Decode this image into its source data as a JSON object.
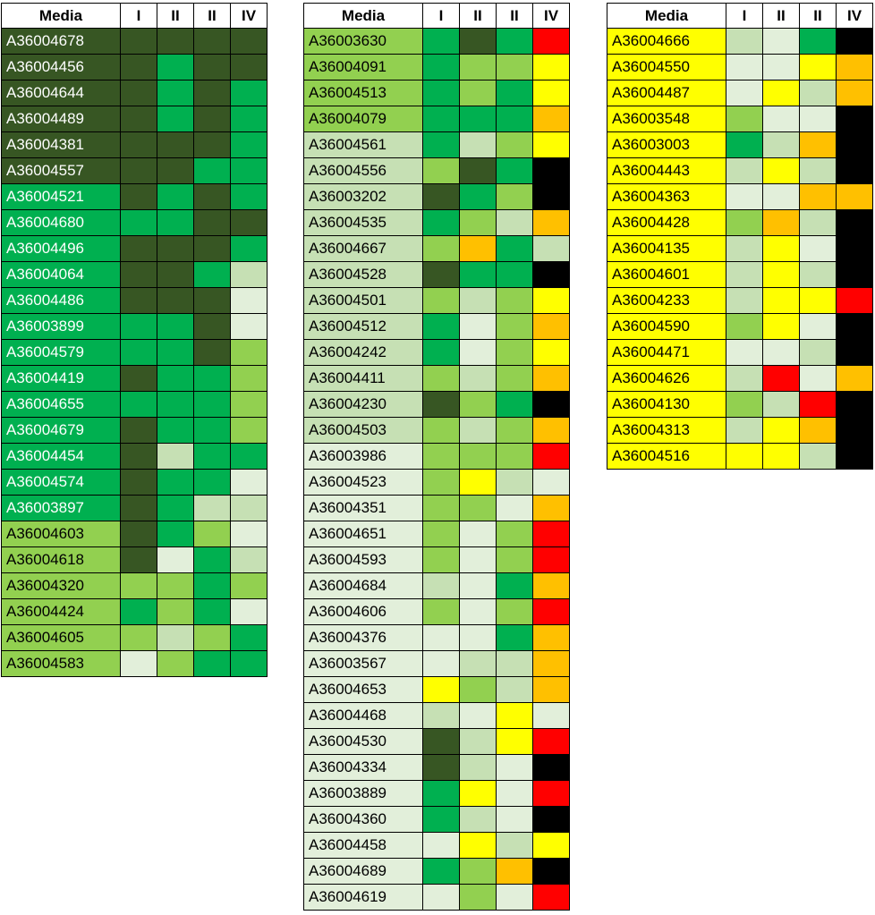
{
  "chart_data": {
    "type": "table",
    "palette": {
      "DG": "#375623",
      "G": "#00B050",
      "LG": "#92D050",
      "PG": "#C6E0B4",
      "VPG": "#E2EFDA",
      "Y": "#FFFF00",
      "O": "#FFC000",
      "R": "#FF0000",
      "K": "#000000"
    },
    "tables": [
      {
        "headers": [
          "Media",
          "I",
          "II",
          "II",
          "IV"
        ],
        "rows": [
          {
            "media": "A36004678",
            "mc": "DG",
            "c": [
              "DG",
              "DG",
              "DG",
              "DG"
            ]
          },
          {
            "media": "A36004456",
            "mc": "DG",
            "c": [
              "DG",
              "G",
              "DG",
              "DG"
            ]
          },
          {
            "media": "A36004644",
            "mc": "DG",
            "c": [
              "DG",
              "G",
              "DG",
              "G"
            ]
          },
          {
            "media": "A36004489",
            "mc": "DG",
            "c": [
              "DG",
              "G",
              "DG",
              "G"
            ]
          },
          {
            "media": "A36004381",
            "mc": "DG",
            "c": [
              "DG",
              "DG",
              "DG",
              "G"
            ]
          },
          {
            "media": "A36004557",
            "mc": "DG",
            "c": [
              "DG",
              "DG",
              "G",
              "G"
            ]
          },
          {
            "media": "A36004521",
            "mc": "G",
            "c": [
              "DG",
              "G",
              "DG",
              "G"
            ]
          },
          {
            "media": "A36004680",
            "mc": "G",
            "c": [
              "G",
              "G",
              "DG",
              "DG"
            ]
          },
          {
            "media": "A36004496",
            "mc": "G",
            "c": [
              "DG",
              "DG",
              "DG",
              "G"
            ]
          },
          {
            "media": "A36004064",
            "mc": "G",
            "c": [
              "DG",
              "DG",
              "G",
              "PG"
            ]
          },
          {
            "media": "A36004486",
            "mc": "G",
            "c": [
              "DG",
              "DG",
              "DG",
              "VPG"
            ]
          },
          {
            "media": "A36003899",
            "mc": "G",
            "c": [
              "G",
              "G",
              "DG",
              "VPG"
            ]
          },
          {
            "media": "A36004579",
            "mc": "G",
            "c": [
              "G",
              "G",
              "DG",
              "LG"
            ]
          },
          {
            "media": "A36004419",
            "mc": "G",
            "c": [
              "DG",
              "G",
              "G",
              "LG"
            ]
          },
          {
            "media": "A36004655",
            "mc": "G",
            "c": [
              "G",
              "G",
              "G",
              "LG"
            ]
          },
          {
            "media": "A36004679",
            "mc": "G",
            "c": [
              "DG",
              "G",
              "G",
              "LG"
            ]
          },
          {
            "media": "A36004454",
            "mc": "G",
            "c": [
              "DG",
              "PG",
              "G",
              "G"
            ]
          },
          {
            "media": "A36004574",
            "mc": "G",
            "c": [
              "DG",
              "G",
              "G",
              "VPG"
            ]
          },
          {
            "media": "A36003897",
            "mc": "G",
            "c": [
              "DG",
              "G",
              "PG",
              "PG"
            ]
          },
          {
            "media": "A36004603",
            "mc": "LG",
            "c": [
              "DG",
              "G",
              "LG",
              "VPG"
            ]
          },
          {
            "media": "A36004618",
            "mc": "LG",
            "c": [
              "DG",
              "VPG",
              "G",
              "PG"
            ]
          },
          {
            "media": "A36004320",
            "mc": "LG",
            "c": [
              "LG",
              "LG",
              "G",
              "LG"
            ]
          },
          {
            "media": "A36004424",
            "mc": "LG",
            "c": [
              "G",
              "LG",
              "G",
              "VPG"
            ]
          },
          {
            "media": "A36004605",
            "mc": "LG",
            "c": [
              "LG",
              "PG",
              "LG",
              "G"
            ]
          },
          {
            "media": "A36004583",
            "mc": "LG",
            "c": [
              "VPG",
              "LG",
              "G",
              "G"
            ]
          }
        ]
      },
      {
        "headers": [
          "Media",
          "I",
          "II",
          "II",
          "IV"
        ],
        "rows": [
          {
            "media": "A36003630",
            "mc": "LG",
            "c": [
              "G",
              "DG",
              "G",
              "R"
            ]
          },
          {
            "media": "A36004091",
            "mc": "LG",
            "c": [
              "G",
              "LG",
              "LG",
              "Y"
            ]
          },
          {
            "media": "A36004513",
            "mc": "LG",
            "c": [
              "G",
              "LG",
              "G",
              "Y"
            ]
          },
          {
            "media": "A36004079",
            "mc": "LG",
            "c": [
              "G",
              "G",
              "G",
              "O"
            ]
          },
          {
            "media": "A36004561",
            "mc": "PG",
            "c": [
              "G",
              "PG",
              "LG",
              "Y"
            ]
          },
          {
            "media": "A36004556",
            "mc": "PG",
            "c": [
              "LG",
              "DG",
              "G",
              "K"
            ]
          },
          {
            "media": "A36003202",
            "mc": "PG",
            "c": [
              "DG",
              "G",
              "LG",
              "K"
            ]
          },
          {
            "media": "A36004535",
            "mc": "PG",
            "c": [
              "G",
              "LG",
              "PG",
              "O"
            ]
          },
          {
            "media": "A36004667",
            "mc": "PG",
            "c": [
              "LG",
              "O",
              "G",
              "PG"
            ]
          },
          {
            "media": "A36004528",
            "mc": "PG",
            "c": [
              "DG",
              "G",
              "G",
              "K"
            ]
          },
          {
            "media": "A36004501",
            "mc": "PG",
            "c": [
              "LG",
              "PG",
              "LG",
              "Y"
            ]
          },
          {
            "media": "A36004512",
            "mc": "PG",
            "c": [
              "G",
              "VPG",
              "LG",
              "O"
            ]
          },
          {
            "media": "A36004242",
            "mc": "PG",
            "c": [
              "G",
              "VPG",
              "LG",
              "Y"
            ]
          },
          {
            "media": "A36004411",
            "mc": "PG",
            "c": [
              "LG",
              "PG",
              "LG",
              "O"
            ]
          },
          {
            "media": "A36004230",
            "mc": "PG",
            "c": [
              "DG",
              "LG",
              "G",
              "K"
            ]
          },
          {
            "media": "A36004503",
            "mc": "PG",
            "c": [
              "LG",
              "PG",
              "LG",
              "O"
            ]
          },
          {
            "media": "A36003986",
            "mc": "VPG",
            "c": [
              "LG",
              "LG",
              "LG",
              "R"
            ]
          },
          {
            "media": "A36004523",
            "mc": "VPG",
            "c": [
              "LG",
              "Y",
              "PG",
              "VPG"
            ]
          },
          {
            "media": "A36004351",
            "mc": "VPG",
            "c": [
              "LG",
              "LG",
              "VPG",
              "O"
            ]
          },
          {
            "media": "A36004651",
            "mc": "VPG",
            "c": [
              "LG",
              "VPG",
              "LG",
              "R"
            ]
          },
          {
            "media": "A36004593",
            "mc": "VPG",
            "c": [
              "LG",
              "VPG",
              "LG",
              "R"
            ]
          },
          {
            "media": "A36004684",
            "mc": "VPG",
            "c": [
              "PG",
              "VPG",
              "G",
              "O"
            ]
          },
          {
            "media": "A36004606",
            "mc": "VPG",
            "c": [
              "LG",
              "VPG",
              "LG",
              "R"
            ]
          },
          {
            "media": "A36004376",
            "mc": "VPG",
            "c": [
              "VPG",
              "VPG",
              "G",
              "O"
            ]
          },
          {
            "media": "A36003567",
            "mc": "VPG",
            "c": [
              "VPG",
              "PG",
              "PG",
              "O"
            ]
          },
          {
            "media": "A36004653",
            "mc": "VPG",
            "c": [
              "Y",
              "LG",
              "PG",
              "O"
            ]
          },
          {
            "media": "A36004468",
            "mc": "VPG",
            "c": [
              "PG",
              "VPG",
              "Y",
              "VPG"
            ]
          },
          {
            "media": "A36004530",
            "mc": "VPG",
            "c": [
              "DG",
              "PG",
              "Y",
              "R"
            ]
          },
          {
            "media": "A36004334",
            "mc": "VPG",
            "c": [
              "DG",
              "PG",
              "VPG",
              "K"
            ]
          },
          {
            "media": "A36003889",
            "mc": "VPG",
            "c": [
              "G",
              "Y",
              "VPG",
              "R"
            ]
          },
          {
            "media": "A36004360",
            "mc": "VPG",
            "c": [
              "G",
              "PG",
              "VPG",
              "K"
            ]
          },
          {
            "media": "A36004458",
            "mc": "VPG",
            "c": [
              "VPG",
              "Y",
              "PG",
              "Y"
            ]
          },
          {
            "media": "A36004689",
            "mc": "VPG",
            "c": [
              "G",
              "LG",
              "O",
              "K"
            ]
          },
          {
            "media": "A36004619",
            "mc": "VPG",
            "c": [
              "VPG",
              "LG",
              "VPG",
              "R"
            ]
          }
        ]
      },
      {
        "headers": [
          "Media",
          "I",
          "II",
          "II",
          "IV"
        ],
        "rows": [
          {
            "media": "A36004666",
            "mc": "Y",
            "c": [
              "PG",
              "VPG",
              "G",
              "K"
            ]
          },
          {
            "media": "A36004550",
            "mc": "Y",
            "c": [
              "VPG",
              "VPG",
              "Y",
              "O"
            ]
          },
          {
            "media": "A36004487",
            "mc": "Y",
            "c": [
              "VPG",
              "Y",
              "PG",
              "O"
            ]
          },
          {
            "media": "A36003548",
            "mc": "Y",
            "c": [
              "LG",
              "VPG",
              "VPG",
              "K"
            ]
          },
          {
            "media": "A36003003",
            "mc": "Y",
            "c": [
              "G",
              "PG",
              "O",
              "K"
            ]
          },
          {
            "media": "A36004443",
            "mc": "Y",
            "c": [
              "PG",
              "Y",
              "PG",
              "K"
            ]
          },
          {
            "media": "A36004363",
            "mc": "Y",
            "c": [
              "VPG",
              "VPG",
              "O",
              "O"
            ]
          },
          {
            "media": "A36004428",
            "mc": "Y",
            "c": [
              "LG",
              "O",
              "PG",
              "K"
            ]
          },
          {
            "media": "A36004135",
            "mc": "Y",
            "c": [
              "PG",
              "Y",
              "VPG",
              "K"
            ]
          },
          {
            "media": "A36004601",
            "mc": "Y",
            "c": [
              "PG",
              "Y",
              "PG",
              "K"
            ]
          },
          {
            "media": "A36004233",
            "mc": "Y",
            "c": [
              "PG",
              "Y",
              "Y",
              "R"
            ]
          },
          {
            "media": "A36004590",
            "mc": "Y",
            "c": [
              "LG",
              "Y",
              "VPG",
              "K"
            ]
          },
          {
            "media": "A36004471",
            "mc": "Y",
            "c": [
              "VPG",
              "VPG",
              "PG",
              "K"
            ]
          },
          {
            "media": "A36004626",
            "mc": "Y",
            "c": [
              "PG",
              "R",
              "VPG",
              "O"
            ]
          },
          {
            "media": "A36004130",
            "mc": "Y",
            "c": [
              "LG",
              "PG",
              "R",
              "K"
            ]
          },
          {
            "media": "A36004313",
            "mc": "Y",
            "c": [
              "PG",
              "Y",
              "O",
              "K"
            ]
          },
          {
            "media": "A36004516",
            "mc": "Y",
            "c": [
              "Y",
              "Y",
              "PG",
              "K"
            ]
          }
        ]
      }
    ]
  }
}
